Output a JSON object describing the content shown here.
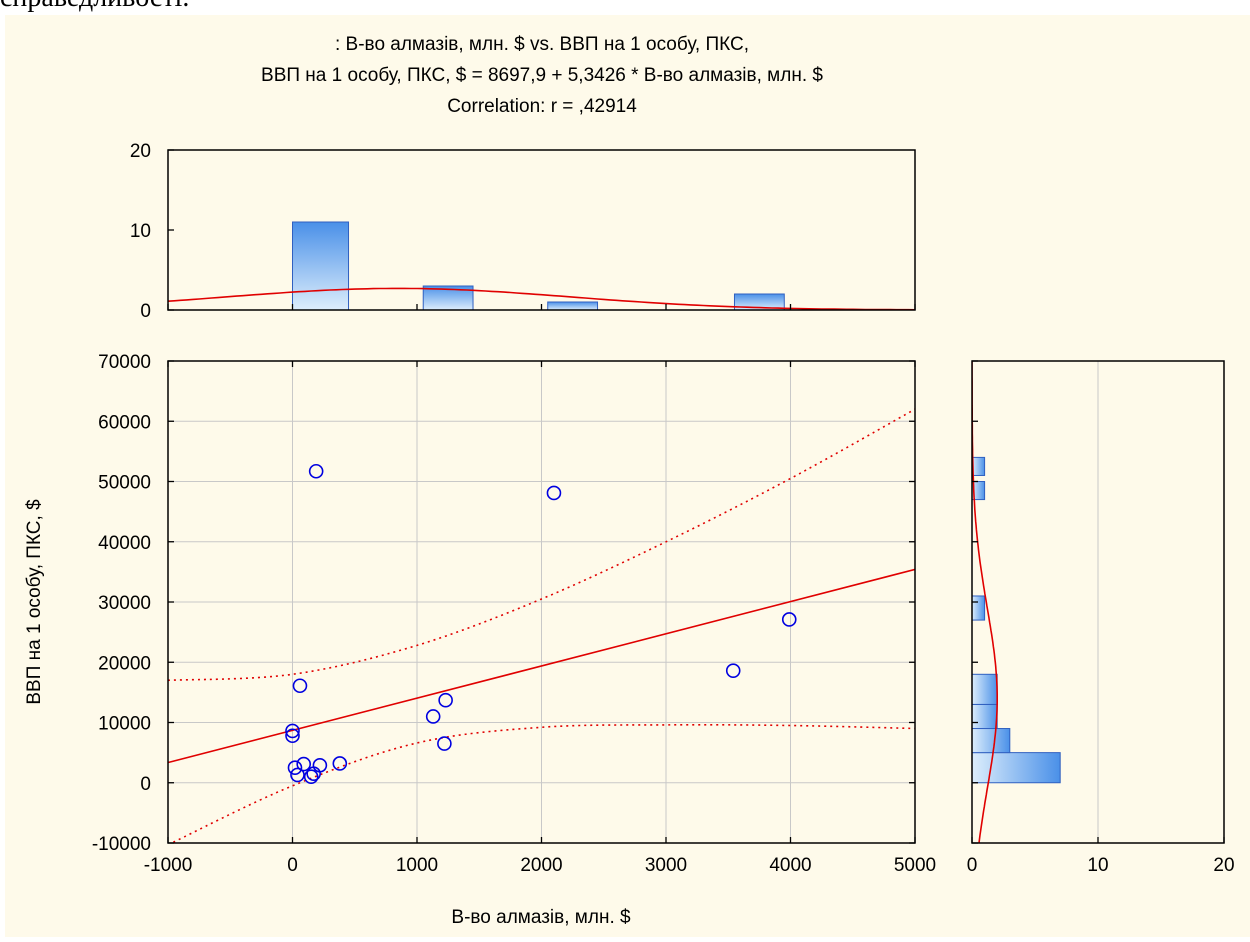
{
  "document": {
    "top_text": "справедливості."
  },
  "chart_data": {
    "type": "scatter",
    "title_lines": [
      ": В-во алмазів, млн. $ vs. ВВП на 1 особу, ПКС,",
      "ВВП на 1 особу, ПКС, $ = 8697,9 + 5,3426 * В-во алмазів, млн. $",
      "Correlation: r = ,42914"
    ],
    "xlabel": "В-во алмазів, млн. $",
    "ylabel": "ВВП на 1 особу, ПКС, $",
    "xlim": [
      -1000,
      5000
    ],
    "ylim": [
      -10000,
      70000
    ],
    "x_ticks": [
      "-1000",
      "0",
      "1000",
      "2000",
      "3000",
      "4000",
      "5000"
    ],
    "y_ticks": [
      "-10000",
      "0",
      "10000",
      "20000",
      "30000",
      "40000",
      "50000",
      "60000",
      "70000"
    ],
    "grid": true,
    "points": [
      {
        "x": 190,
        "y": 51700
      },
      {
        "x": 2100,
        "y": 48100
      },
      {
        "x": 3990,
        "y": 27100
      },
      {
        "x": 3540,
        "y": 18600
      },
      {
        "x": 60,
        "y": 16100
      },
      {
        "x": 1230,
        "y": 13700
      },
      {
        "x": 1130,
        "y": 11000
      },
      {
        "x": 1220,
        "y": 6500
      },
      {
        "x": 0,
        "y": 8600
      },
      {
        "x": 0,
        "y": 7800
      },
      {
        "x": 380,
        "y": 3200
      },
      {
        "x": 220,
        "y": 2900
      },
      {
        "x": 90,
        "y": 3100
      },
      {
        "x": 20,
        "y": 2500
      },
      {
        "x": 170,
        "y": 1500
      },
      {
        "x": 40,
        "y": 1300
      },
      {
        "x": 150,
        "y": 1000
      }
    ],
    "regression": {
      "intercept": 8697.9,
      "slope": 5.3426
    },
    "confidence_band": {
      "x": [
        -1000,
        0,
        1000,
        2000,
        3000,
        4000,
        5000
      ],
      "upper": [
        17000,
        18000,
        22800,
        30500,
        40000,
        50500,
        62000
      ],
      "lower": [
        -10300,
        -500,
        6600,
        9200,
        9600,
        9500,
        9000
      ]
    },
    "top_histogram": {
      "ylim": [
        0,
        20
      ],
      "y_ticks": [
        "0",
        "10",
        "20"
      ],
      "bins": [
        {
          "start": 0,
          "end": 450,
          "count": 11
        },
        {
          "start": 1050,
          "end": 1450,
          "count": 3
        },
        {
          "start": 2050,
          "end": 2450,
          "count": 1
        },
        {
          "start": 3550,
          "end": 3950,
          "count": 2
        }
      ],
      "normal_curve": {
        "mean": 850,
        "sd": 1380,
        "peak": 2.7
      }
    },
    "right_histogram": {
      "xlim": [
        0,
        20
      ],
      "x_ticks": [
        "0",
        "10",
        "20"
      ],
      "bins": [
        {
          "start": 0,
          "end": 5000,
          "count": 7
        },
        {
          "start": 5000,
          "end": 9000,
          "count": 3
        },
        {
          "start": 9000,
          "end": 13000,
          "count": 2
        },
        {
          "start": 13000,
          "end": 18000,
          "count": 2
        },
        {
          "start": 27000,
          "end": 31000,
          "count": 1
        },
        {
          "start": 47000,
          "end": 50000,
          "count": 1
        },
        {
          "start": 51000,
          "end": 54000,
          "count": 1
        }
      ],
      "normal_curve": {
        "mean": 14000,
        "sd": 15000,
        "peak": 2.0
      }
    },
    "colors": {
      "point": "#0000e0",
      "line": "#e00000",
      "bar_top": "#4a90e8",
      "bar_bottom": "#ddeefc",
      "bar_border": "#3060c0",
      "grid": "#c8c8c8",
      "background": "#fefaea"
    }
  }
}
